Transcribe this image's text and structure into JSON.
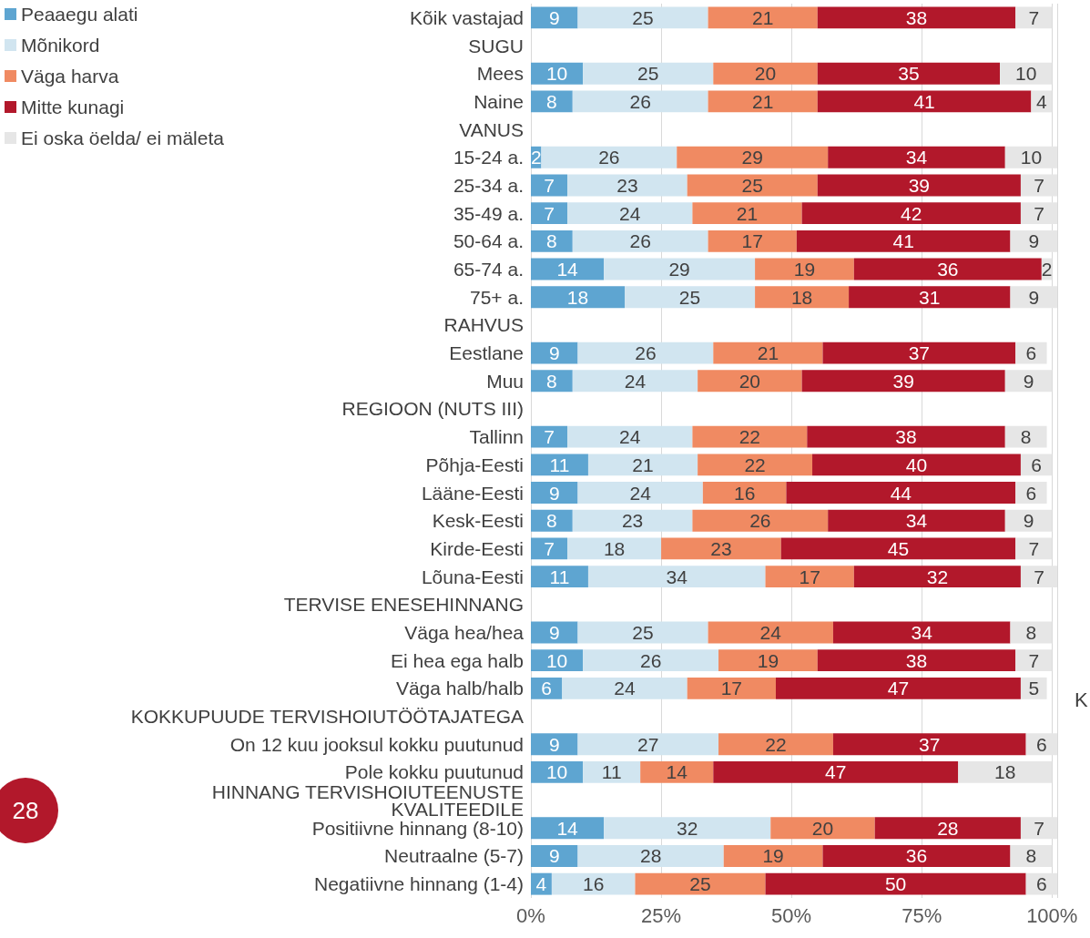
{
  "chart_data": {
    "type": "bar",
    "orientation": "horizontal",
    "stacked": true,
    "data_labels": true,
    "grid": "x",
    "legend": "top left",
    "categories": [
      "Kõik vastajad",
      "SUGU",
      "Mees",
      "Naine",
      "VANUS",
      "15-24 a.",
      "25-34 a.",
      "35-49 a.",
      "50-64 a.",
      "65-74 a.",
      "75+ a.",
      "RAHVUS",
      "Eestlane",
      "Muu",
      "REGIOON (NUTS III)",
      "Tallinn",
      "Põhja-Eesti",
      "Lääne-Eesti",
      "Kesk-Eesti",
      "Kirde-Eesti",
      "Lõuna-Eesti",
      "TERVISE ENESEHINNANG",
      "Väga hea/hea",
      "Ei hea ega halb",
      "Väga halb/halb",
      "KOKKUPUUDE TERVISHOIUTÖÖTAJATEGA",
      "On 12 kuu jooksul kokku puutunud",
      "Pole kokku puutunud",
      "HINNANG TERVISHOIUTEENUSTE KVALITEEDILE",
      "Positiivne hinnang (8-10)",
      "Neutraalne (5-7)",
      "Negatiivne hinnang (1-4)"
    ],
    "series": [
      {
        "name": "Peaaegu alati",
        "color": "#5ea5d1",
        "values": [
          9,
          null,
          10,
          8,
          null,
          2,
          7,
          7,
          8,
          14,
          18,
          null,
          9,
          8,
          null,
          7,
          11,
          9,
          8,
          7,
          11,
          null,
          9,
          10,
          6,
          null,
          9,
          10,
          null,
          14,
          9,
          4
        ]
      },
      {
        "name": "Mõnikord",
        "color": "#d1e5f0",
        "values": [
          25,
          null,
          25,
          26,
          null,
          26,
          23,
          24,
          26,
          29,
          25,
          null,
          26,
          24,
          null,
          24,
          21,
          24,
          23,
          18,
          34,
          null,
          25,
          26,
          24,
          null,
          27,
          11,
          null,
          32,
          28,
          16
        ]
      },
      {
        "name": "Väga harva",
        "color": "#f08a62",
        "values": [
          21,
          null,
          20,
          21,
          null,
          29,
          25,
          21,
          17,
          19,
          18,
          null,
          21,
          20,
          null,
          22,
          22,
          16,
          26,
          23,
          17,
          null,
          24,
          19,
          17,
          null,
          22,
          14,
          null,
          20,
          19,
          25
        ]
      },
      {
        "name": "Mitte kunagi",
        "color": "#b2182b",
        "values": [
          38,
          null,
          35,
          41,
          null,
          34,
          39,
          42,
          41,
          36,
          31,
          null,
          37,
          39,
          null,
          38,
          40,
          44,
          34,
          45,
          32,
          null,
          34,
          38,
          47,
          null,
          37,
          47,
          null,
          28,
          36,
          50
        ]
      },
      {
        "name": "Ei oska öelda/ ei mäleta",
        "color": "#e6e6e6",
        "values": [
          7,
          null,
          10,
          4,
          null,
          10,
          7,
          7,
          9,
          2,
          9,
          null,
          6,
          9,
          null,
          8,
          6,
          6,
          9,
          7,
          7,
          null,
          8,
          7,
          5,
          null,
          6,
          18,
          null,
          7,
          8,
          6
        ]
      }
    ],
    "xlim": [
      0,
      101
    ],
    "xticks": [
      {
        "value": 0,
        "label": "0%"
      },
      {
        "value": 25,
        "label": "25%"
      },
      {
        "value": 50,
        "label": "50%"
      },
      {
        "value": 75,
        "label": "75%"
      },
      {
        "value": 100,
        "label": "100%"
      }
    ],
    "annotations": [
      "28",
      "K"
    ]
  }
}
